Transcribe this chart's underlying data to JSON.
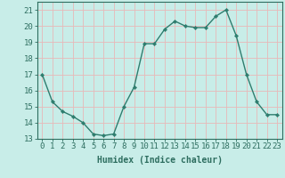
{
  "x": [
    0,
    1,
    2,
    3,
    4,
    5,
    6,
    7,
    8,
    9,
    10,
    11,
    12,
    13,
    14,
    15,
    16,
    17,
    18,
    19,
    20,
    21,
    22,
    23
  ],
  "y": [
    17.0,
    15.3,
    14.7,
    14.4,
    14.0,
    13.3,
    13.2,
    13.3,
    15.0,
    16.2,
    18.9,
    18.9,
    19.8,
    20.3,
    20.0,
    19.9,
    19.9,
    20.6,
    21.0,
    19.4,
    17.0,
    15.3,
    14.5,
    14.5
  ],
  "line_color": "#2e7d6e",
  "marker": "D",
  "marker_size": 2.2,
  "bg_color": "#c8ede8",
  "grid_color": "#e8b8b8",
  "xlabel": "Humidex (Indice chaleur)",
  "ylabel_ticks": [
    13,
    14,
    15,
    16,
    17,
    18,
    19,
    20,
    21
  ],
  "xlim": [
    -0.5,
    23.5
  ],
  "ylim": [
    13,
    21.5
  ],
  "xlabel_fontsize": 7,
  "tick_fontsize": 6.5,
  "label_color": "#2e6e60",
  "linewidth": 1.0
}
